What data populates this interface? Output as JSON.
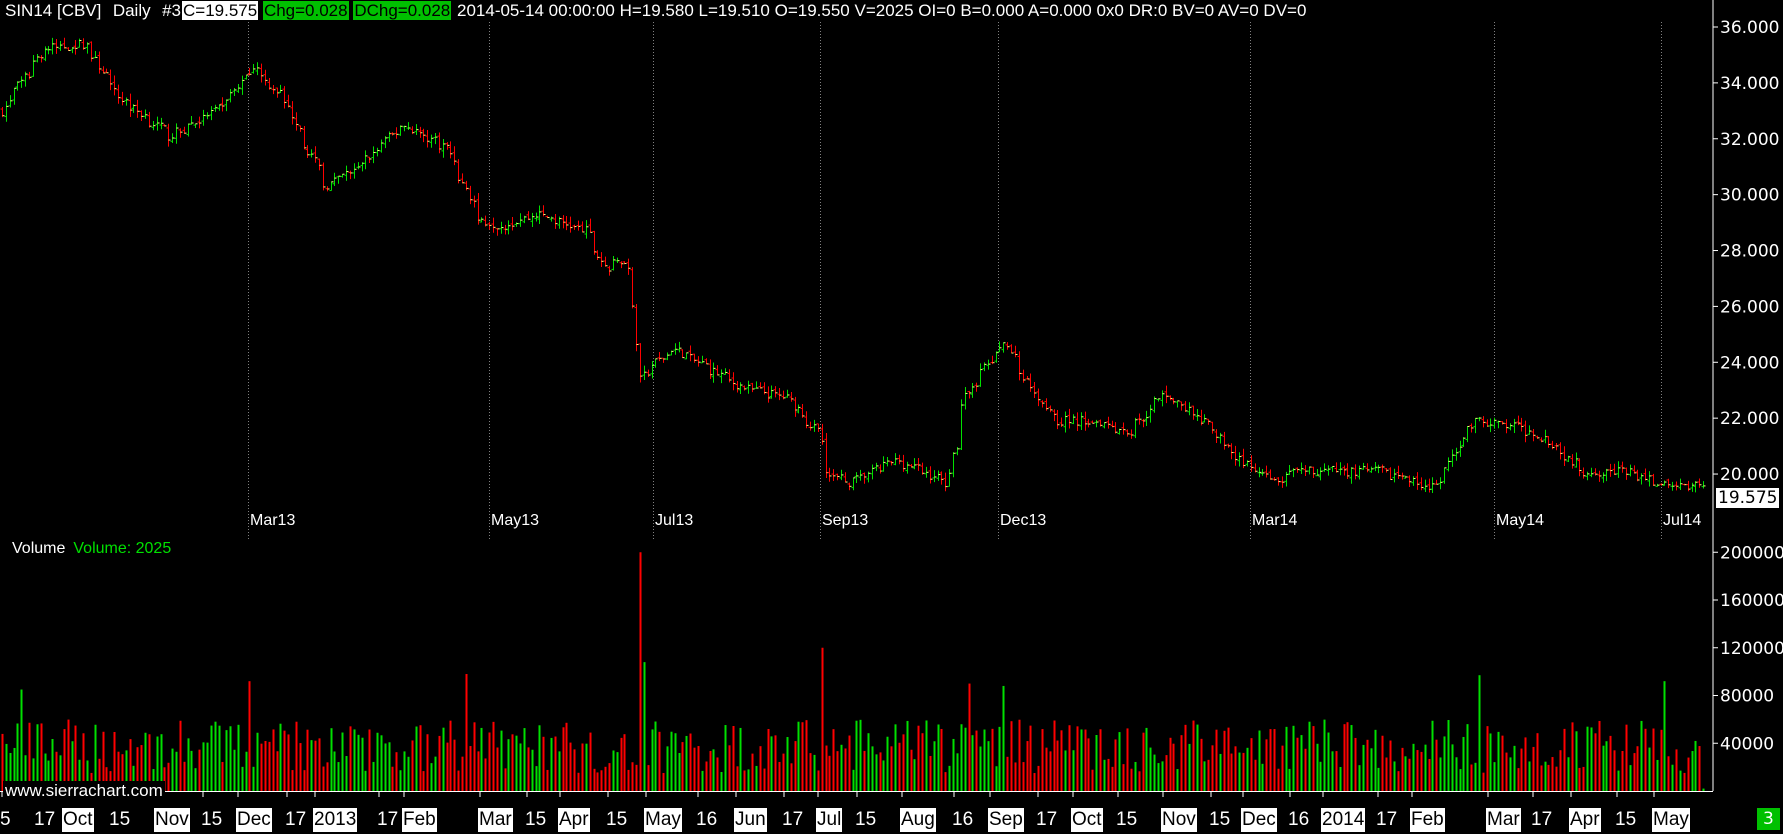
{
  "header": {
    "symbol": "SIN14 [CBV]",
    "period": "Daily",
    "chart_number": "#3",
    "close": "C=19.575",
    "change": "Chg=0.028",
    "daily_change": "DChg=0.028",
    "details": "2014-05-14 00:00:00 H=19.580 L=19.510 O=19.550 V=2025 OI=0 B=0.000 A=0.000 0x0 DR:0 BV=0 AV=0 DV=0"
  },
  "price_axis": {
    "ticks": [
      "36.000",
      "34.000",
      "32.000",
      "30.000",
      "28.000",
      "26.000",
      "24.000",
      "22.000",
      "20.000"
    ],
    "last_price": "19.575"
  },
  "volume_panel": {
    "title": "Volume",
    "value_label": "Volume: 2025",
    "ticks": [
      "200000",
      "160000",
      "120000",
      "80000",
      "40000"
    ]
  },
  "contract_markers": [
    "Mar13",
    "May13",
    "Jul13",
    "Sep13",
    "Dec13",
    "Mar14",
    "May14",
    "Jul14"
  ],
  "date_axis": [
    {
      "t": "5",
      "m": false
    },
    {
      "t": "17",
      "m": false
    },
    {
      "t": "Oct",
      "m": true
    },
    {
      "t": "15",
      "m": false
    },
    {
      "t": "Nov",
      "m": true
    },
    {
      "t": "15",
      "m": false
    },
    {
      "t": "Dec",
      "m": true
    },
    {
      "t": "17",
      "m": false
    },
    {
      "t": "2013",
      "m": true
    },
    {
      "t": "17",
      "m": false
    },
    {
      "t": "Feb",
      "m": true
    },
    {
      "t": "Mar",
      "m": true
    },
    {
      "t": "15",
      "m": false
    },
    {
      "t": "Apr",
      "m": true
    },
    {
      "t": "15",
      "m": false
    },
    {
      "t": "May",
      "m": true
    },
    {
      "t": "16",
      "m": false
    },
    {
      "t": "Jun",
      "m": true
    },
    {
      "t": "17",
      "m": false
    },
    {
      "t": "Jul",
      "m": true
    },
    {
      "t": "15",
      "m": false
    },
    {
      "t": "Aug",
      "m": true
    },
    {
      "t": "16",
      "m": false
    },
    {
      "t": "Sep",
      "m": true
    },
    {
      "t": "17",
      "m": false
    },
    {
      "t": "Oct",
      "m": true
    },
    {
      "t": "15",
      "m": false
    },
    {
      "t": "Nov",
      "m": true
    },
    {
      "t": "15",
      "m": false
    },
    {
      "t": "Dec",
      "m": true
    },
    {
      "t": "16",
      "m": false
    },
    {
      "t": "2014",
      "m": true
    },
    {
      "t": "17",
      "m": false
    },
    {
      "t": "Feb",
      "m": true
    },
    {
      "t": "Mar",
      "m": true
    },
    {
      "t": "17",
      "m": false
    },
    {
      "t": "Apr",
      "m": true
    },
    {
      "t": "15",
      "m": false
    },
    {
      "t": "May",
      "m": true
    }
  ],
  "watermark": "www.sierrachart.com",
  "page_badge": "3",
  "colors": {
    "up": "#00e000",
    "down": "#ff0000",
    "close_tick": "#ffff80",
    "background": "#000000",
    "grid": "#808080"
  },
  "chart_data": {
    "type": "ohlc",
    "price_range": [
      19.0,
      36.0
    ],
    "volume_range": [
      0,
      200000
    ],
    "date_range": [
      "2012-09-05",
      "2014-05-14"
    ],
    "last_bar": {
      "date": "2014-05-14",
      "open": 19.55,
      "high": 19.58,
      "low": 19.51,
      "close": 19.575,
      "volume": 2025
    },
    "price_path": [
      [
        "2012-09-05",
        33.0
      ],
      [
        "2012-09-20",
        35.2
      ],
      [
        "2012-10-05",
        35.4
      ],
      [
        "2012-10-17",
        33.5
      ],
      [
        "2012-11-05",
        32.1
      ],
      [
        "2012-11-23",
        33.1
      ],
      [
        "2012-12-05",
        34.6
      ],
      [
        "2012-12-17",
        33.3
      ],
      [
        "2012-12-31",
        30.3
      ],
      [
        "2013-01-11",
        30.9
      ],
      [
        "2013-01-28",
        32.5
      ],
      [
        "2013-02-13",
        31.7
      ],
      [
        "2013-02-25",
        29.1
      ],
      [
        "2013-03-05",
        28.9
      ],
      [
        "2013-03-18",
        29.3
      ],
      [
        "2013-04-04",
        28.7
      ],
      [
        "2013-04-12",
        27.3
      ],
      [
        "2013-04-18",
        27.7
      ],
      [
        "2013-04-22",
        26.1
      ],
      [
        "2013-04-24",
        23.5
      ],
      [
        "2013-05-06",
        24.5
      ],
      [
        "2013-05-31",
        23.1
      ],
      [
        "2013-06-17",
        22.7
      ],
      [
        "2013-06-27",
        21.5
      ],
      [
        "2013-07-02",
        19.9
      ],
      [
        "2013-07-09",
        19.7
      ],
      [
        "2013-07-26",
        20.5
      ],
      [
        "2013-08-13",
        19.7
      ],
      [
        "2013-08-20",
        22.9
      ],
      [
        "2013-09-03",
        24.7
      ],
      [
        "2013-09-11",
        23.3
      ],
      [
        "2013-09-23",
        21.9
      ],
      [
        "2013-10-08",
        21.9
      ],
      [
        "2013-10-18",
        21.5
      ],
      [
        "2013-10-31",
        22.9
      ],
      [
        "2013-11-18",
        21.5
      ],
      [
        "2013-11-29",
        20.3
      ],
      [
        "2013-12-09",
        19.7
      ],
      [
        "2013-12-20",
        20.1
      ],
      [
        "2014-01-17",
        20.1
      ],
      [
        "2014-02-06",
        19.5
      ],
      [
        "2014-02-20",
        21.9
      ],
      [
        "2014-03-06",
        21.7
      ],
      [
        "2014-03-18",
        21.3
      ],
      [
        "2014-03-31",
        20.1
      ],
      [
        "2014-04-15",
        20.1
      ],
      [
        "2014-05-02",
        19.5
      ],
      [
        "2014-05-14",
        19.575
      ]
    ],
    "volume_spikes": [
      [
        "2013-04-24",
        200000
      ],
      [
        "2013-04-25",
        108000
      ],
      [
        "2013-06-28",
        120000
      ],
      [
        "2012-09-12",
        85000
      ],
      [
        "2012-12-04",
        92000
      ],
      [
        "2013-02-20",
        98000
      ],
      [
        "2013-08-21",
        90000
      ],
      [
        "2013-09-03",
        88000
      ],
      [
        "2014-02-21",
        97000
      ],
      [
        "2014-04-30",
        92000
      ]
    ]
  }
}
